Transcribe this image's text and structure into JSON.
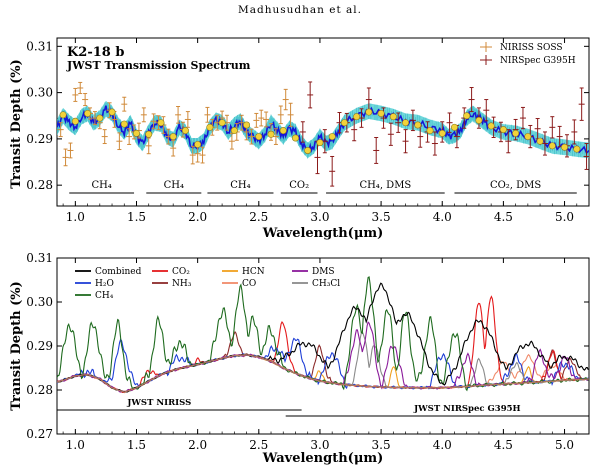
{
  "header": "Madhusudhan et al.",
  "chart_data": [
    {
      "type": "scatter",
      "title": "K2-18 b",
      "subtitle": "JWST Transmission Spectrum",
      "xlabel": "Wavelength(μm)",
      "ylabel": "Transit Depth (%)",
      "xlim": [
        0.85,
        5.2
      ],
      "ylim": [
        0.2755,
        0.3118
      ],
      "xticks": [
        "1.0",
        "1.5",
        "2.0",
        "2.5",
        "3.0",
        "3.5",
        "4.0",
        "4.5",
        "5.0"
      ],
      "xtick_values": [
        1.0,
        1.5,
        2.0,
        2.5,
        3.0,
        3.5,
        4.0,
        4.5,
        5.0
      ],
      "yticks": [
        "0.28",
        "0.29",
        "0.30",
        "0.31"
      ],
      "ytick_values": [
        0.28,
        0.29,
        0.3,
        0.31
      ],
      "legend": [
        {
          "name": "NIRISS SOSS",
          "color": "#d08a3a"
        },
        {
          "name": "NIRSpec G395H",
          "color": "#8b1a1a"
        }
      ],
      "model_curve": {
        "x": [
          0.85,
          0.9,
          0.95,
          1.0,
          1.05,
          1.1,
          1.15,
          1.2,
          1.25,
          1.3,
          1.35,
          1.4,
          1.45,
          1.5,
          1.55,
          1.6,
          1.65,
          1.7,
          1.75,
          1.8,
          1.85,
          1.9,
          1.95,
          2.0,
          2.05,
          2.1,
          2.15,
          2.2,
          2.25,
          2.3,
          2.35,
          2.4,
          2.45,
          2.5,
          2.55,
          2.6,
          2.65,
          2.7,
          2.75,
          2.8,
          2.85,
          2.9,
          2.95,
          3.0,
          3.05,
          3.1,
          3.15,
          3.2,
          3.3,
          3.4,
          3.5,
          3.6,
          3.7,
          3.8,
          3.9,
          4.0,
          4.05,
          4.1,
          4.15,
          4.2,
          4.25,
          4.3,
          4.35,
          4.4,
          4.5,
          4.6,
          4.7,
          4.8,
          4.9,
          5.0,
          5.1,
          5.2
        ],
        "y": [
          0.2925,
          0.295,
          0.2935,
          0.2925,
          0.2948,
          0.2955,
          0.2935,
          0.2945,
          0.2965,
          0.2955,
          0.293,
          0.2915,
          0.2935,
          0.2905,
          0.289,
          0.2915,
          0.2935,
          0.2932,
          0.2905,
          0.2898,
          0.2925,
          0.2915,
          0.2885,
          0.2885,
          0.2895,
          0.2925,
          0.294,
          0.2935,
          0.2915,
          0.293,
          0.2938,
          0.2915,
          0.2905,
          0.2895,
          0.291,
          0.2935,
          0.292,
          0.2905,
          0.2922,
          0.2915,
          0.289,
          0.2875,
          0.2885,
          0.2905,
          0.289,
          0.2895,
          0.2915,
          0.2935,
          0.295,
          0.296,
          0.2955,
          0.2948,
          0.2938,
          0.2935,
          0.2925,
          0.2918,
          0.2905,
          0.2908,
          0.2918,
          0.2945,
          0.2955,
          0.2945,
          0.2935,
          0.2925,
          0.2915,
          0.2912,
          0.2905,
          0.2895,
          0.2885,
          0.2882,
          0.2878,
          0.2875
        ]
      },
      "binned_points": {
        "x": [
          0.9,
          1.0,
          1.1,
          1.2,
          1.3,
          1.4,
          1.5,
          1.6,
          1.7,
          1.8,
          1.9,
          2.0,
          2.1,
          2.2,
          2.3,
          2.4,
          2.5,
          2.6,
          2.7,
          2.8,
          2.9,
          3.0,
          3.1,
          3.2,
          3.3,
          3.4,
          3.5,
          3.6,
          3.7,
          3.8,
          3.9,
          4.0,
          4.1,
          4.2,
          4.3,
          4.4,
          4.5,
          4.6,
          4.7,
          4.8,
          4.9,
          5.0,
          5.1
        ],
        "y": [
          0.2952,
          0.2938,
          0.2955,
          0.2945,
          0.2958,
          0.2932,
          0.2912,
          0.291,
          0.2935,
          0.2905,
          0.2918,
          0.2888,
          0.2925,
          0.2935,
          0.2918,
          0.293,
          0.2905,
          0.291,
          0.2918,
          0.2902,
          0.2875,
          0.2892,
          0.2905,
          0.2935,
          0.2948,
          0.2958,
          0.2955,
          0.2948,
          0.2935,
          0.293,
          0.2918,
          0.2912,
          0.2925,
          0.295,
          0.294,
          0.2928,
          0.292,
          0.2912,
          0.2905,
          0.2895,
          0.2885,
          0.2882,
          0.2878
        ]
      },
      "niriss_soss": {
        "x": [
          0.88,
          0.92,
          0.96,
          1.0,
          1.04,
          1.08,
          1.12,
          1.16,
          1.2,
          1.24,
          1.28,
          1.32,
          1.36,
          1.4,
          1.44,
          1.48,
          1.52,
          1.56,
          1.6,
          1.64,
          1.68,
          1.72,
          1.76,
          1.8,
          1.84,
          1.88,
          1.92,
          1.96,
          2.0,
          2.04,
          2.08,
          2.12,
          2.16,
          2.2,
          2.24,
          2.28,
          2.32,
          2.36,
          2.4,
          2.44,
          2.48,
          2.52,
          2.56,
          2.6,
          2.64,
          2.68,
          2.72,
          2.76
        ],
        "y": [
          0.292,
          0.286,
          0.2875,
          0.2995,
          0.301,
          0.2985,
          0.2955,
          0.2945,
          0.2935,
          0.2905,
          0.2962,
          0.2942,
          0.2895,
          0.2975,
          0.2905,
          0.2915,
          0.2918,
          0.2952,
          0.2885,
          0.2938,
          0.2935,
          0.293,
          0.2905,
          0.288,
          0.2952,
          0.292,
          0.2942,
          0.2865,
          0.2868,
          0.2865,
          0.2952,
          0.2925,
          0.2935,
          0.2945,
          0.2935,
          0.2895,
          0.2915,
          0.2935,
          0.2915,
          0.2905,
          0.294,
          0.2945,
          0.2942,
          0.2915,
          0.2905,
          0.2952,
          0.2985,
          0.2952
        ],
        "err": [
          0.0015,
          0.0018,
          0.0016,
          0.0014,
          0.0012,
          0.0013,
          0.0012,
          0.0014,
          0.0013,
          0.0015,
          0.0016,
          0.0017,
          0.0018,
          0.0015,
          0.0017,
          0.0015,
          0.0016,
          0.0015,
          0.0017,
          0.0016,
          0.0015,
          0.0018,
          0.0016,
          0.0017,
          0.0018,
          0.0016,
          0.0017,
          0.0019,
          0.0018,
          0.0017,
          0.0016,
          0.0017,
          0.0016,
          0.0015,
          0.0016,
          0.0017,
          0.0018,
          0.0016,
          0.0017,
          0.0016,
          0.0015,
          0.0017,
          0.0016,
          0.0018,
          0.0017,
          0.0019,
          0.0022,
          0.0025
        ]
      },
      "nirspec_g395h": {
        "x": [
          2.86,
          2.92,
          2.98,
          3.04,
          3.1,
          3.16,
          3.22,
          3.28,
          3.34,
          3.4,
          3.46,
          3.52,
          3.58,
          3.64,
          3.7,
          3.76,
          3.82,
          3.88,
          3.94,
          4.0,
          4.06,
          4.12,
          4.18,
          4.24,
          4.3,
          4.36,
          4.42,
          4.48,
          4.54,
          4.6,
          4.66,
          4.72,
          4.78,
          4.84,
          4.9,
          4.96,
          5.02,
          5.08,
          5.14,
          5.18
        ],
        "y": [
          0.2915,
          0.2995,
          0.286,
          0.2895,
          0.283,
          0.2935,
          0.2935,
          0.292,
          0.2945,
          0.2985,
          0.2875,
          0.2945,
          0.291,
          0.2935,
          0.2895,
          0.294,
          0.2905,
          0.2915,
          0.289,
          0.2915,
          0.2935,
          0.2905,
          0.2945,
          0.2985,
          0.2945,
          0.2962,
          0.2925,
          0.2915,
          0.2895,
          0.292,
          0.2945,
          0.2905,
          0.2922,
          0.289,
          0.2925,
          0.2905,
          0.2885,
          0.2915,
          0.2975,
          0.2862
        ],
        "err": [
          0.0022,
          0.0028,
          0.0035,
          0.0025,
          0.0032,
          0.0022,
          0.002,
          0.0024,
          0.002,
          0.0025,
          0.0028,
          0.0022,
          0.0024,
          0.0021,
          0.0025,
          0.0022,
          0.0023,
          0.0022,
          0.0025,
          0.0022,
          0.0021,
          0.0024,
          0.0022,
          0.0026,
          0.0022,
          0.0023,
          0.0022,
          0.0021,
          0.0025,
          0.0022,
          0.0023,
          0.0024,
          0.0022,
          0.0025,
          0.0023,
          0.0022,
          0.0024,
          0.0026,
          0.0035,
          0.0028
        ]
      },
      "molecule_bands": [
        {
          "label": "CH₄",
          "x0": 0.95,
          "x1": 1.48
        },
        {
          "label": "CH₄",
          "x0": 1.58,
          "x1": 2.03
        },
        {
          "label": "CH₄",
          "x0": 2.08,
          "x1": 2.62
        },
        {
          "label": "CO₂",
          "x0": 2.68,
          "x1": 2.98
        },
        {
          "label": "CH₄, DMS",
          "x0": 3.05,
          "x1": 4.02
        },
        {
          "label": "CO₂, DMS",
          "x0": 4.1,
          "x1": 5.1
        }
      ]
    },
    {
      "type": "line",
      "xlabel": "Wavelength(μm)",
      "ylabel": "Transit Depth (%)",
      "xlim": [
        0.85,
        5.2
      ],
      "ylim": [
        0.27,
        0.31
      ],
      "xticks": [
        "1.0",
        "1.5",
        "2.0",
        "2.5",
        "3.0",
        "3.5",
        "4.0",
        "4.5",
        "5.0"
      ],
      "xtick_values": [
        1.0,
        1.5,
        2.0,
        2.5,
        3.0,
        3.5,
        4.0,
        4.5,
        5.0
      ],
      "yticks": [
        "0.27",
        "0.28",
        "0.29",
        "0.30",
        "0.31"
      ],
      "ytick_values": [
        0.27,
        0.28,
        0.29,
        0.3,
        0.31
      ],
      "legend": [
        {
          "name": "Combined",
          "color": "#000000"
        },
        {
          "name": "H₂O",
          "color": "#1f3fd6"
        },
        {
          "name": "CH₄",
          "color": "#1f6b1f"
        },
        {
          "name": "CO₂",
          "color": "#e41a1c"
        },
        {
          "name": "NH₃",
          "color": "#8c2a2a"
        },
        {
          "name": "HCN",
          "color": "#f0a020"
        },
        {
          "name": "CO",
          "color": "#f08a6a"
        },
        {
          "name": "DMS",
          "color": "#8a1a9a"
        },
        {
          "name": "CH₃Cl",
          "color": "#8a8a8a"
        }
      ],
      "instrument_ranges": [
        {
          "label": "JWST NIRISS",
          "x0": 0.85,
          "x1": 2.85
        },
        {
          "label": "JWST NIRSpec G395H",
          "x0": 2.72,
          "x1": 5.2
        }
      ],
      "continuum": {
        "x": [
          0.85,
          0.9,
          1.0,
          1.1,
          1.2,
          1.3,
          1.4,
          1.5,
          1.6,
          1.7,
          1.8,
          1.9,
          2.0,
          2.1,
          2.2,
          2.3,
          2.4,
          2.5,
          2.6,
          2.7,
          2.8,
          2.9,
          3.0,
          3.2,
          3.4,
          3.6,
          3.8,
          4.0,
          4.2,
          4.4,
          4.6,
          4.8,
          5.0,
          5.2
        ],
        "y": [
          0.2818,
          0.2822,
          0.2832,
          0.2835,
          0.2825,
          0.2805,
          0.2795,
          0.2805,
          0.282,
          0.2835,
          0.2845,
          0.2852,
          0.2858,
          0.2865,
          0.2872,
          0.2878,
          0.288,
          0.2875,
          0.2865,
          0.285,
          0.2838,
          0.2828,
          0.282,
          0.2812,
          0.2808,
          0.2806,
          0.2805,
          0.2805,
          0.2808,
          0.2812,
          0.2815,
          0.2818,
          0.2822,
          0.2825
        ]
      },
      "features": {
        "CH₄": [
          [
            0.95,
            0.2952
          ],
          [
            1.15,
            0.2952
          ],
          [
            1.35,
            0.2945
          ],
          [
            1.68,
            0.2952
          ],
          [
            1.85,
            0.2912
          ],
          [
            2.2,
            0.2982
          ],
          [
            2.35,
            0.3022
          ],
          [
            2.45,
            0.2955
          ],
          [
            2.6,
            0.2935
          ],
          [
            3.3,
            0.2995
          ],
          [
            3.4,
            0.3055
          ],
          [
            3.55,
            0.2985
          ],
          [
            3.7,
            0.2972
          ],
          [
            3.9,
            0.2955
          ],
          [
            4.1,
            0.2935
          ]
        ],
        "H₂O": [
          [
            1.1,
            0.2842
          ],
          [
            1.38,
            0.2905
          ],
          [
            1.85,
            0.2875
          ],
          [
            2.65,
            0.2895
          ],
          [
            2.8,
            0.2915
          ],
          [
            3.1,
            0.2885
          ],
          [
            4.0,
            0.2882
          ],
          [
            4.6,
            0.2872
          ],
          [
            5.0,
            0.2862
          ]
        ],
        "CO₂": [
          [
            1.2,
            0.2825
          ],
          [
            1.6,
            0.2845
          ],
          [
            2.0,
            0.2865
          ],
          [
            2.7,
            0.2952
          ],
          [
            4.3,
            0.3005
          ],
          [
            4.4,
            0.3015
          ],
          [
            4.9,
            0.2885
          ]
        ],
        "NH₃": [
          [
            2.3,
            0.2925
          ],
          [
            3.0,
            0.2895
          ],
          [
            4.9,
            0.2885
          ],
          [
            5.05,
            0.2872
          ]
        ],
        "DMS": [
          [
            3.3,
            0.2932
          ],
          [
            3.4,
            0.2955
          ],
          [
            3.6,
            0.2905
          ],
          [
            4.2,
            0.2875
          ],
          [
            4.8,
            0.2882
          ],
          [
            5.0,
            0.2872
          ]
        ],
        "CH₃Cl": [
          [
            3.35,
            0.2935
          ],
          [
            3.45,
            0.2905
          ],
          [
            4.3,
            0.2865
          ],
          [
            4.6,
            0.2862
          ]
        ],
        "HCN": [
          [
            3.0,
            0.2845
          ],
          [
            3.6,
            0.2855
          ],
          [
            4.7,
            0.2855
          ]
        ],
        "CO": [
          [
            4.5,
            0.2862
          ],
          [
            4.7,
            0.2875
          ],
          [
            4.9,
            0.2855
          ]
        ],
        "Combined": [
          [
            2.9,
            0.2905
          ],
          [
            3.3,
            0.2985
          ],
          [
            3.5,
            0.3035
          ],
          [
            3.7,
            0.2972
          ],
          [
            4.3,
            0.2955
          ],
          [
            4.7,
            0.2905
          ],
          [
            5.0,
            0.2875
          ]
        ]
      }
    }
  ]
}
